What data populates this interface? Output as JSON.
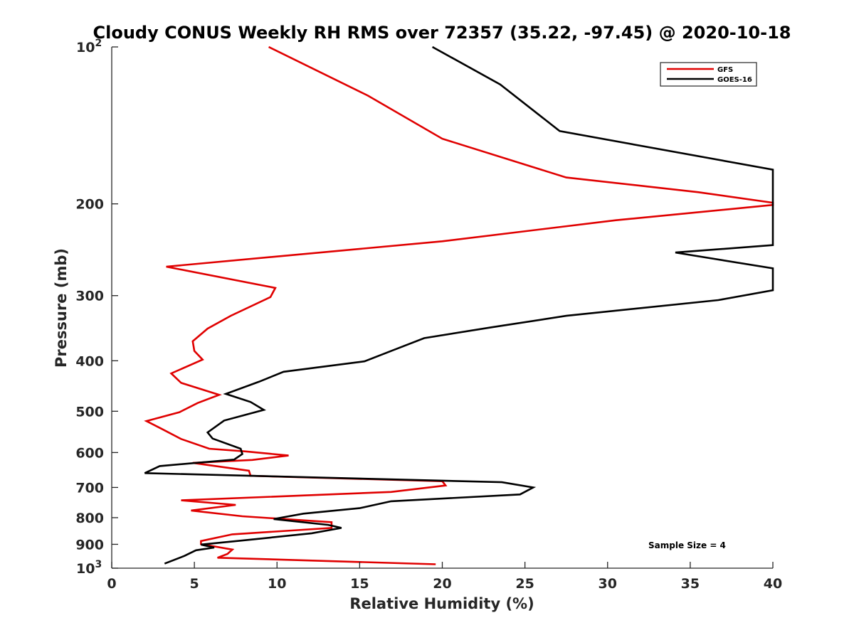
{
  "chart_data": {
    "type": "line",
    "title": "Cloudy CONUS Weekly RH RMS over 72357 (35.22, -97.45) @ 2020-10-18",
    "xlabel": "Relative Humidity (%)",
    "ylabel": "Pressure (mb)",
    "xlim": [
      0,
      40
    ],
    "ylim": [
      100,
      1000
    ],
    "y_scale": "log",
    "y_reversed": true,
    "x_ticks": [
      "0",
      "5",
      "10",
      "15",
      "20",
      "25",
      "30",
      "35",
      "40"
    ],
    "y_ticks": [
      {
        "value": 100,
        "base": "10",
        "exp": "2"
      },
      {
        "value": 200,
        "label": "200"
      },
      {
        "value": 300,
        "label": "300"
      },
      {
        "value": 400,
        "label": "400"
      },
      {
        "value": 500,
        "label": "500"
      },
      {
        "value": 600,
        "label": "600"
      },
      {
        "value": 700,
        "label": "700"
      },
      {
        "value": 800,
        "label": "800"
      },
      {
        "value": 900,
        "label": "900"
      },
      {
        "value": 1000,
        "base": "10",
        "exp": "3"
      }
    ],
    "grid": false,
    "legend_position": "top-right",
    "series": [
      {
        "name": "GFS",
        "color": "#e00000",
        "points": [
          [
            9.5,
            100
          ],
          [
            15.5,
            124
          ],
          [
            20,
            150
          ],
          [
            27.5,
            178
          ],
          [
            35.5,
            190
          ],
          [
            40,
            199
          ],
          [
            40,
            201
          ],
          [
            30.5,
            215
          ],
          [
            20,
            236
          ],
          [
            3.3,
            264
          ],
          [
            9.9,
            290
          ],
          [
            9.6,
            302
          ],
          [
            7.2,
            328
          ],
          [
            5.8,
            347
          ],
          [
            4.9,
            367
          ],
          [
            5,
            383
          ],
          [
            5.5,
            398
          ],
          [
            3.6,
            423
          ],
          [
            4.2,
            441
          ],
          [
            6.5,
            465
          ],
          [
            5.2,
            482
          ],
          [
            4.1,
            502
          ],
          [
            2.1,
            522
          ],
          [
            3,
            540
          ],
          [
            4.2,
            565
          ],
          [
            5.9,
            590
          ],
          [
            8.1,
            597
          ],
          [
            10.7,
            608
          ],
          [
            8.5,
            620
          ],
          [
            4.9,
            628
          ],
          [
            8.3,
            650
          ],
          [
            8.4,
            665
          ],
          [
            20,
            681
          ],
          [
            20.2,
            694
          ],
          [
            16.9,
            714
          ],
          [
            4.2,
            741
          ],
          [
            7.5,
            756
          ],
          [
            4.8,
            775
          ],
          [
            7.9,
            795
          ],
          [
            13.3,
            816
          ],
          [
            13.3,
            837
          ],
          [
            7.3,
            861
          ],
          [
            5.4,
            887
          ],
          [
            5.4,
            899
          ],
          [
            7.3,
            921
          ],
          [
            7,
            939
          ],
          [
            6.4,
            955
          ],
          [
            19.6,
            983
          ]
        ]
      },
      {
        "name": "GOES-16",
        "color": "#000000",
        "points": [
          [
            19.4,
            100
          ],
          [
            23.5,
            118
          ],
          [
            27.1,
            145
          ],
          [
            40,
            172
          ],
          [
            40,
            240
          ],
          [
            34.1,
            248
          ],
          [
            40,
            266
          ],
          [
            40,
            293
          ],
          [
            36.7,
            306
          ],
          [
            27.5,
            328
          ],
          [
            23,
            345
          ],
          [
            18.9,
            362
          ],
          [
            17,
            382
          ],
          [
            15.3,
            401
          ],
          [
            10.4,
            420
          ],
          [
            8.9,
            439
          ],
          [
            6.9,
            463
          ],
          [
            8.4,
            480
          ],
          [
            9.2,
            497
          ],
          [
            6.8,
            521
          ],
          [
            5.8,
            549
          ],
          [
            6.1,
            564
          ],
          [
            7.8,
            590
          ],
          [
            7.9,
            604
          ],
          [
            7.4,
            619
          ],
          [
            2.9,
            637
          ],
          [
            2,
            657
          ],
          [
            23.6,
            684
          ],
          [
            25.5,
            700
          ],
          [
            24.7,
            722
          ],
          [
            16.9,
            744
          ],
          [
            15,
            767
          ],
          [
            11.6,
            786
          ],
          [
            9.8,
            805
          ],
          [
            13.1,
            826
          ],
          [
            13.9,
            837
          ],
          [
            12.1,
            857
          ],
          [
            7.9,
            885
          ],
          [
            5.4,
            901
          ],
          [
            6.2,
            913
          ],
          [
            5.1,
            924
          ],
          [
            4.4,
            947
          ],
          [
            3.2,
            980
          ]
        ]
      }
    ],
    "annotations": [
      {
        "text": "Sample Size = 4"
      }
    ]
  }
}
